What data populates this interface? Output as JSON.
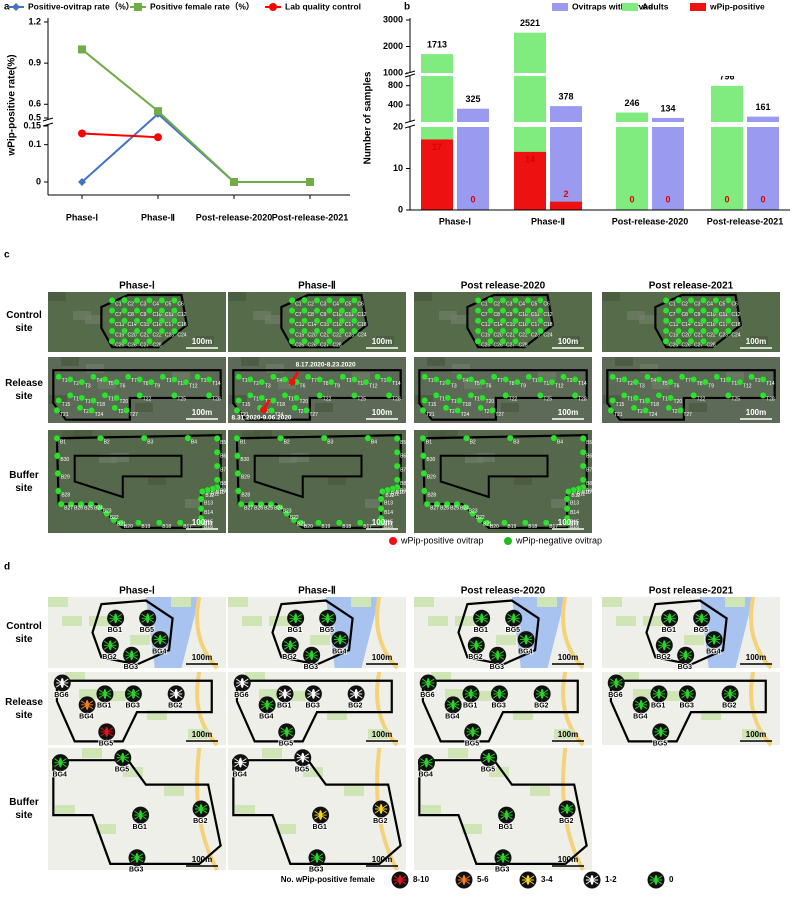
{
  "panel_labels": [
    "a",
    "b",
    "c",
    "d"
  ],
  "chart_data": [
    {
      "type": "line",
      "ylabel": "wPip-positive rate(%)",
      "categories": [
        "Phase-Ⅰ",
        "Phase-Ⅱ",
        "Post-release-2020",
        "Post-release-2021"
      ],
      "series": [
        {
          "name": "Positive-ovitrap rate（%）",
          "color": "#4472c4",
          "marker": "diamond",
          "values": [
            0,
            0.53,
            0,
            0
          ]
        },
        {
          "name": "Positive female rate（%）",
          "color": "#70ad47",
          "marker": "square",
          "values": [
            1.0,
            0.55,
            0,
            0
          ]
        },
        {
          "name": "Lab quality control",
          "color": "#ff0000",
          "marker": "circle",
          "values": [
            0.13,
            0.12,
            null,
            null
          ]
        }
      ],
      "ylim": [
        0,
        1.2
      ],
      "ybreaks": [
        [
          0.15,
          0.5
        ]
      ],
      "yticks": [
        0,
        0.1,
        0.15,
        0.5,
        0.6,
        0.9,
        1.2
      ]
    },
    {
      "type": "bar",
      "ylabel": "Number of samples",
      "categories": [
        "Phase-Ⅰ",
        "Phase-Ⅱ",
        "Post-release-2020",
        "Post-release-2021"
      ],
      "series": [
        {
          "name": "Ovitraps with larvae",
          "color": "#9a9af0",
          "slot": 1,
          "values": [
            325,
            378,
            134,
            161
          ]
        },
        {
          "name": "Adults",
          "color": "#80ec80",
          "slot": 0,
          "values": [
            1713,
            2521,
            246,
            796
          ]
        },
        {
          "name": "wPip-positive",
          "color": "#ee1111",
          "slot": 0,
          "values": [
            17,
            14,
            0,
            0
          ]
        },
        {
          "color": "#ee1111",
          "slot": 1,
          "values": [
            0,
            2,
            0,
            0
          ]
        }
      ],
      "ylim": [
        0,
        3000
      ],
      "ybreaks": [
        [
          20,
          50
        ],
        [
          1000,
          1000
        ]
      ],
      "yticks": [
        0,
        10,
        20,
        400,
        800,
        1000,
        2000,
        3000
      ]
    }
  ],
  "panel_c": {
    "columns": [
      "Phase-Ⅰ",
      "Phase-Ⅱ",
      "Post release-2020",
      "Post release-2021"
    ],
    "rows": [
      {
        "label": "Control site",
        "maps": 4,
        "traps": [
          "C1",
          "C2",
          "C3",
          "C4",
          "C5",
          "C6",
          "C7",
          "C8",
          "C9",
          "C10",
          "C11",
          "C12",
          "C13",
          "C14",
          "C15",
          "C16",
          "C17",
          "C18",
          "C19",
          "C20",
          "C21",
          "C22",
          "C23",
          "C24",
          "C25",
          "C26",
          "C27",
          "C28"
        ]
      },
      {
        "label": "Release site",
        "maps": 4,
        "traps": [
          "T1",
          "T2",
          "T3",
          "T4",
          "T5",
          "T6",
          "T7",
          "T8",
          "T9",
          "T10",
          "T11",
          "T12",
          "T13",
          "T14",
          "T15",
          "T16",
          "T17",
          "T18",
          "T19",
          "T20",
          "T21",
          "T22",
          "T23",
          "T24",
          "T25",
          "T26",
          "T27",
          "T28"
        ]
      },
      {
        "label": "Buffer site",
        "maps": 3,
        "traps": [
          "B1",
          "B2",
          "B3",
          "B4",
          "B5",
          "B6",
          "B7",
          "B8",
          "B9",
          "B10",
          "B11",
          "B12",
          "B13",
          "B14",
          "B15",
          "B16",
          "B17",
          "B18",
          "B19",
          "B20",
          "B21",
          "B22",
          "B23",
          "B24",
          "B25",
          "B26",
          "B27",
          "B28",
          "B29",
          "B30"
        ]
      }
    ],
    "scale_label": "100m",
    "positive_annotations": [
      "8.17.2020-8.23.2020",
      "8.31.2020-9.06.2020"
    ],
    "legend": [
      {
        "label": "wPip-positive ovitrap",
        "color": "#ee1111"
      },
      {
        "label": "wPip-negative ovitrap",
        "color": "#22bb22"
      }
    ]
  },
  "panel_d": {
    "columns": [
      "Phase-Ⅰ",
      "Phase-Ⅱ",
      "Post release-2020",
      "Post release-2021"
    ],
    "rows": [
      {
        "label": "Control site",
        "traps": [
          "BG1",
          "BG5",
          "BG2",
          "BG4",
          "BG3"
        ],
        "levels": [
          [
            4,
            4,
            4,
            4,
            4
          ],
          [
            4,
            4,
            4,
            4,
            4
          ],
          [
            4,
            4,
            4,
            4,
            4
          ],
          [
            4,
            4,
            4,
            4,
            4
          ]
        ]
      },
      {
        "label": "Release site",
        "traps": [
          "BG6",
          "BG4",
          "BG1",
          "BG3",
          "BG2",
          "BG5"
        ],
        "levels": [
          [
            3,
            1,
            4,
            4,
            3,
            0
          ],
          [
            3,
            4,
            3,
            3,
            3,
            4
          ],
          [
            4,
            4,
            4,
            4,
            4,
            4
          ],
          [
            4,
            4,
            4,
            4,
            4,
            4
          ]
        ]
      },
      {
        "label": "Buffer site",
        "traps": [
          "BG4",
          "BG5",
          "BG2",
          "BG1",
          "BG3"
        ],
        "levels": [
          [
            4,
            4,
            4,
            4,
            4
          ],
          [
            3,
            3,
            2,
            2,
            4
          ],
          [
            4,
            4,
            4,
            4,
            4
          ]
        ]
      }
    ],
    "scale_label": "100m",
    "legend_title": "No. wPip-positive female",
    "legend": [
      {
        "label": "8-10",
        "color": "#e8141c"
      },
      {
        "label": "5-6",
        "color": "#f2801e"
      },
      {
        "label": "3-4",
        "color": "#f5d426"
      },
      {
        "label": "1-2",
        "color": "#ffffff"
      },
      {
        "label": "0",
        "color": "#2ad42a"
      }
    ]
  }
}
